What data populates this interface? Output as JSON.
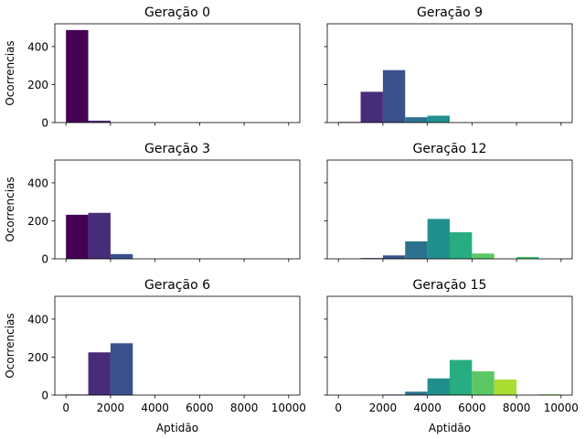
{
  "chart_data": [
    {
      "type": "bar",
      "title": "Geração 0",
      "xlabel": "",
      "ylabel": "Ocorrencias",
      "bin_width": 1000,
      "bin_starts": [
        0,
        1000
      ],
      "values": [
        487,
        10
      ],
      "xlim": [
        -500,
        10500
      ],
      "ylim": [
        0,
        520
      ],
      "xticks": [
        0,
        2000,
        4000,
        6000,
        8000,
        10000
      ],
      "yticks": [
        0,
        200,
        400
      ]
    },
    {
      "type": "bar",
      "title": "Geração 9",
      "xlabel": "",
      "ylabel": "",
      "bin_width": 1000,
      "bin_starts": [
        0,
        1000,
        2000,
        3000,
        4000
      ],
      "values": [
        3,
        162,
        276,
        28,
        36
      ],
      "xlim": [
        -500,
        10500
      ],
      "ylim": [
        0,
        520
      ],
      "xticks": [
        0,
        2000,
        4000,
        6000,
        8000,
        10000
      ],
      "yticks": [
        0,
        200,
        400
      ]
    },
    {
      "type": "bar",
      "title": "Geração 3",
      "xlabel": "",
      "ylabel": "Ocorrencias",
      "bin_width": 1000,
      "bin_starts": [
        0,
        1000,
        2000
      ],
      "values": [
        232,
        242,
        25
      ],
      "xlim": [
        -500,
        10500
      ],
      "ylim": [
        0,
        520
      ],
      "xticks": [
        0,
        2000,
        4000,
        6000,
        8000,
        10000
      ],
      "yticks": [
        0,
        200,
        400
      ]
    },
    {
      "type": "bar",
      "title": "Geração 12",
      "xlabel": "",
      "ylabel": "",
      "bin_width": 1000,
      "bin_starts": [
        1000,
        2000,
        3000,
        4000,
        5000,
        6000,
        7000,
        8000
      ],
      "values": [
        4,
        18,
        92,
        210,
        140,
        28,
        2,
        10
      ],
      "xlim": [
        -500,
        10500
      ],
      "ylim": [
        0,
        520
      ],
      "xticks": [
        0,
        2000,
        4000,
        6000,
        8000,
        10000
      ],
      "yticks": [
        0,
        200,
        400
      ]
    },
    {
      "type": "bar",
      "title": "Geração 6",
      "xlabel": "Aptidão",
      "ylabel": "Ocorrencias",
      "bin_width": 1000,
      "bin_starts": [
        0,
        1000,
        2000
      ],
      "values": [
        3,
        225,
        273
      ],
      "xlim": [
        -500,
        10500
      ],
      "ylim": [
        0,
        520
      ],
      "xticks": [
        0,
        2000,
        4000,
        6000,
        8000,
        10000
      ],
      "yticks": [
        0,
        200,
        400
      ]
    },
    {
      "type": "bar",
      "title": "Geração 15",
      "xlabel": "Aptidão",
      "ylabel": "",
      "bin_width": 1000,
      "bin_starts": [
        1000,
        2000,
        3000,
        4000,
        5000,
        6000,
        7000,
        8000,
        9000
      ],
      "values": [
        1,
        3,
        18,
        88,
        185,
        125,
        82,
        2,
        4
      ],
      "xlim": [
        -500,
        10500
      ],
      "ylim": [
        0,
        520
      ],
      "xticks": [
        0,
        2000,
        4000,
        6000,
        8000,
        10000
      ],
      "yticks": [
        0,
        200,
        400
      ]
    }
  ],
  "colors": {
    "0": "#440154",
    "1000": "#472c7a",
    "2000": "#3b518b",
    "3000": "#2c718e",
    "4000": "#21908d",
    "5000": "#27ad81",
    "6000": "#5cc863",
    "7000": "#aadc32",
    "8000": "#4ac16d",
    "9000": "#7ad151",
    "axis": "#000000"
  }
}
